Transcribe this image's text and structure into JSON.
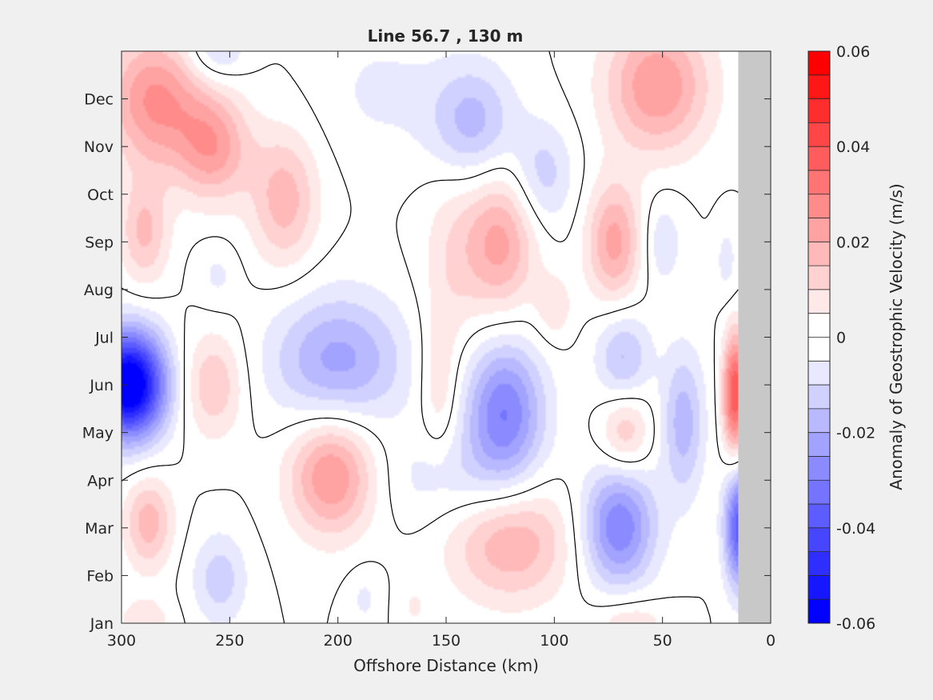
{
  "chart_data": {
    "type": "heatmap",
    "title": "Line 56.7 , 130 m",
    "xlabel": "Offshore Distance (km)",
    "ylabel": "",
    "xlim": [
      300,
      0
    ],
    "x_reversed": true,
    "x_ticks": [
      "300",
      "250",
      "200",
      "150",
      "100",
      "50",
      "0"
    ],
    "x_tick_values": [
      300,
      250,
      200,
      150,
      100,
      50,
      0
    ],
    "y_ticks": [
      "Jan",
      "Feb",
      "Mar",
      "Apr",
      "May",
      "Jun",
      "Jul",
      "Aug",
      "Sep",
      "Oct",
      "Nov",
      "Dec"
    ],
    "colorbar": {
      "label": "Anomaly of Geostrophic Velocity (m/s)",
      "clim": [
        -0.06,
        0.06
      ],
      "step": 0.005,
      "ticks": [
        "0.06",
        "0.04",
        "0.02",
        "0",
        "-0.02",
        "-0.04",
        "-0.06"
      ],
      "tick_values": [
        0.06,
        0.04,
        0.02,
        0,
        -0.02,
        -0.04,
        -0.06
      ],
      "positive_color": "#ff0000",
      "negative_color": "#0000ff",
      "zero_color": "#ffffff"
    },
    "masked_color": "#c8c8c8",
    "masked_x_range": [
      0,
      15
    ],
    "blobs": [
      {
        "x": 297,
        "y": 5.0,
        "sx": 12,
        "sy": 0.8,
        "a": -0.066
      },
      {
        "x": 16,
        "y": 4.8,
        "sx": 4,
        "sy": 0.9,
        "a": 0.04
      },
      {
        "x": 14,
        "y": 2.0,
        "sx": 5,
        "sy": 0.9,
        "a": -0.038
      },
      {
        "x": 285,
        "y": 11.0,
        "sx": 16,
        "sy": 1.0,
        "a": 0.026
      },
      {
        "x": 290,
        "y": 8.2,
        "sx": 8,
        "sy": 0.8,
        "a": 0.016
      },
      {
        "x": 288,
        "y": 2.1,
        "sx": 8,
        "sy": 0.7,
        "a": 0.018
      },
      {
        "x": 258,
        "y": 10.0,
        "sx": 12,
        "sy": 0.8,
        "a": 0.022
      },
      {
        "x": 225,
        "y": 8.9,
        "sx": 11,
        "sy": 1.0,
        "a": 0.018
      },
      {
        "x": 257,
        "y": 12.0,
        "sx": 10,
        "sy": 0.45,
        "a": -0.012
      },
      {
        "x": 256,
        "y": 7.3,
        "sx": 7,
        "sy": 0.5,
        "a": -0.006
      },
      {
        "x": 258,
        "y": 5.0,
        "sx": 10,
        "sy": 0.8,
        "a": 0.015
      },
      {
        "x": 200,
        "y": 5.5,
        "sx": 22,
        "sy": 1.0,
        "a": -0.022
      },
      {
        "x": 203,
        "y": 3.1,
        "sx": 14,
        "sy": 0.9,
        "a": 0.026
      },
      {
        "x": 255,
        "y": 0.9,
        "sx": 9,
        "sy": 0.7,
        "a": -0.013
      },
      {
        "x": 188,
        "y": 0.5,
        "sx": 6,
        "sy": 0.5,
        "a": -0.006
      },
      {
        "x": 138,
        "y": 10.5,
        "sx": 14,
        "sy": 0.9,
        "a": -0.018
      },
      {
        "x": 105,
        "y": 9.4,
        "sx": 10,
        "sy": 0.8,
        "a": -0.013
      },
      {
        "x": 180,
        "y": 11.2,
        "sx": 20,
        "sy": 1.0,
        "a": -0.006
      },
      {
        "x": 125,
        "y": 8.0,
        "sx": 12,
        "sy": 1.1,
        "a": 0.022
      },
      {
        "x": 148,
        "y": 7.6,
        "sx": 10,
        "sy": 1.5,
        "a": 0.008
      },
      {
        "x": 153,
        "y": 5.0,
        "sx": 6,
        "sy": 1.0,
        "a": 0.01
      },
      {
        "x": 100,
        "y": 6.6,
        "sx": 6,
        "sy": 0.5,
        "a": 0.009
      },
      {
        "x": 72,
        "y": 8.0,
        "sx": 9,
        "sy": 0.9,
        "a": 0.022
      },
      {
        "x": 52,
        "y": 11.3,
        "sx": 17,
        "sy": 1.0,
        "a": 0.025
      },
      {
        "x": 50,
        "y": 8.0,
        "sx": 7,
        "sy": 0.7,
        "a": -0.009
      },
      {
        "x": 123,
        "y": 4.4,
        "sx": 13,
        "sy": 1.1,
        "a": -0.03
      },
      {
        "x": 150,
        "y": 3.0,
        "sx": 22,
        "sy": 0.7,
        "a": -0.008
      },
      {
        "x": 120,
        "y": 1.7,
        "sx": 20,
        "sy": 0.9,
        "a": 0.02
      },
      {
        "x": 68,
        "y": 5.6,
        "sx": 9,
        "sy": 0.7,
        "a": -0.016
      },
      {
        "x": 67,
        "y": 4.0,
        "sx": 8,
        "sy": 0.6,
        "a": 0.015
      },
      {
        "x": 40,
        "y": 4.2,
        "sx": 7,
        "sy": 1.1,
        "a": -0.018
      },
      {
        "x": 70,
        "y": 2.0,
        "sx": 12,
        "sy": 0.9,
        "a": -0.03
      },
      {
        "x": 165,
        "y": 0.3,
        "sx": 6,
        "sy": 0.4,
        "a": 0.005
      },
      {
        "x": 65,
        "y": 0.0,
        "sx": 12,
        "sy": 0.4,
        "a": 0.01
      },
      {
        "x": 290,
        "y": 0.0,
        "sx": 10,
        "sy": 0.4,
        "a": 0.008
      },
      {
        "x": 20,
        "y": 7.6,
        "sx": 4,
        "sy": 0.6,
        "a": -0.007
      }
    ]
  }
}
